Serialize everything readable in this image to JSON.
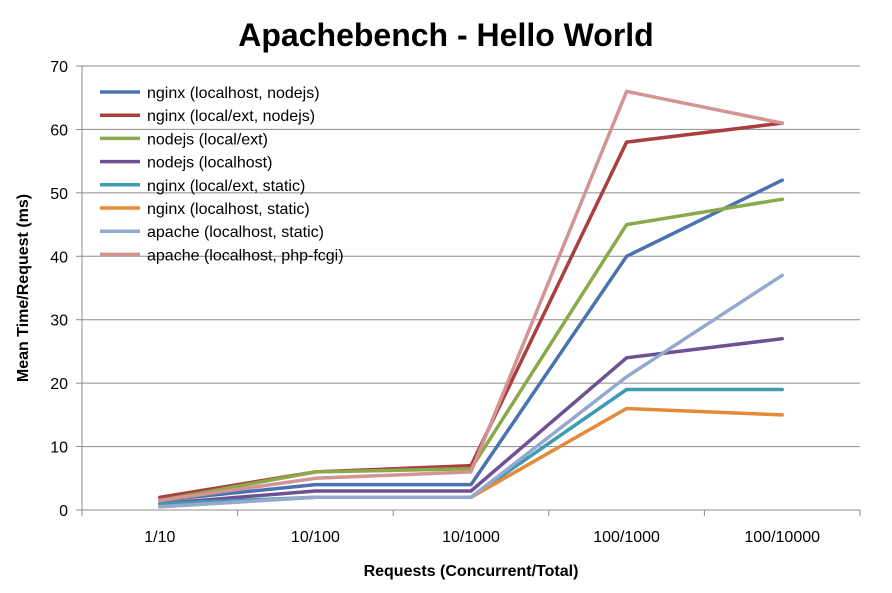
{
  "chart_data": {
    "type": "line",
    "title": "Apachebench - Hello World",
    "xlabel": "Requests (Concurrent/Total)",
    "ylabel": "Mean Time/Request (ms)",
    "categories": [
      "1/10",
      "10/100",
      "10/1000",
      "100/1000",
      "100/10000"
    ],
    "ylim": [
      0,
      70
    ],
    "yticks": [
      0,
      10,
      20,
      30,
      40,
      50,
      60,
      70
    ],
    "grid": true,
    "legend_position": "top-left",
    "series": [
      {
        "name": "nginx (localhost, nodejs)",
        "color": "#4a72b0",
        "values": [
          1.5,
          4,
          4,
          40,
          52
        ]
      },
      {
        "name": "nginx (local/ext, nodejs)",
        "color": "#a9403f",
        "values": [
          2,
          6,
          7,
          58,
          61
        ]
      },
      {
        "name": "nodejs (local/ext)",
        "color": "#8aa94a",
        "values": [
          1.5,
          6,
          6.5,
          45,
          49
        ]
      },
      {
        "name": "nodejs (localhost)",
        "color": "#6e5193",
        "values": [
          1,
          3,
          3,
          24,
          27
        ]
      },
      {
        "name": "nginx (local/ext, static)",
        "color": "#3f9bb0",
        "values": [
          1,
          2,
          2,
          19,
          19
        ]
      },
      {
        "name": "nginx (localhost, static)",
        "color": "#e58a3a",
        "values": [
          0.5,
          2,
          2,
          16,
          15
        ]
      },
      {
        "name": "apache (localhost, static)",
        "color": "#93a9d0",
        "values": [
          0.5,
          2,
          2,
          21,
          37
        ]
      },
      {
        "name": "apache (localhost, php-fcgi)",
        "color": "#d39593",
        "values": [
          1.5,
          5,
          6,
          66,
          61
        ]
      }
    ]
  }
}
